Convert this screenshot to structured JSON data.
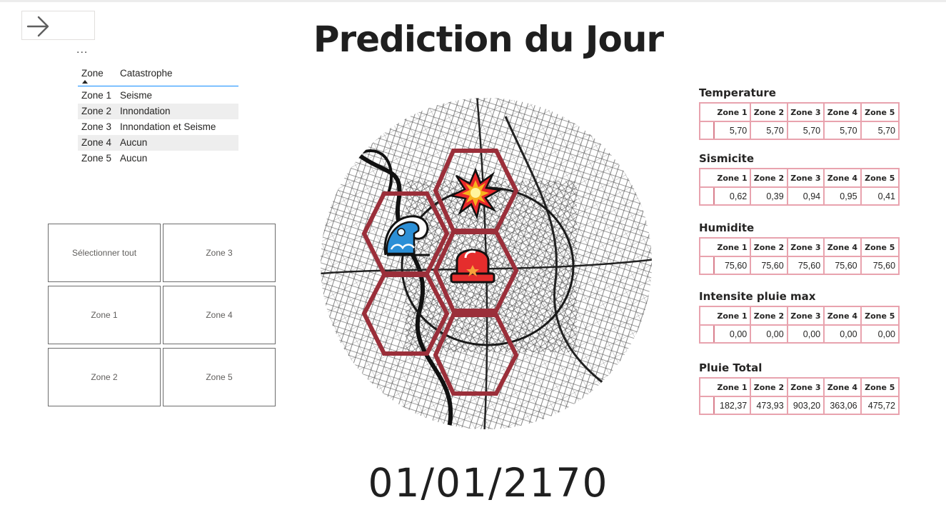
{
  "page": {
    "title": "Prediction du Jour",
    "date": "01/01/2170",
    "more_label": "..."
  },
  "zone_table": {
    "headers": {
      "zone": "Zone",
      "catastrophe": "Catastrophe"
    },
    "rows": [
      {
        "zone": "Zone 1",
        "catastrophe": "Seisme"
      },
      {
        "zone": "Zone 2",
        "catastrophe": "Innondation"
      },
      {
        "zone": "Zone 3",
        "catastrophe": "Innondation et Seisme"
      },
      {
        "zone": "Zone 4",
        "catastrophe": "Aucun"
      },
      {
        "zone": "Zone 5",
        "catastrophe": "Aucun"
      }
    ]
  },
  "slicer": {
    "select_all": "Sélectionner tout",
    "zone1": "Zone 1",
    "zone2": "Zone 2",
    "zone3": "Zone 3",
    "zone4": "Zone 4",
    "zone5": "Zone 5"
  },
  "map": {
    "hex_color": "#9b2f3a",
    "icons": [
      "explosion-icon",
      "tsunami-wave-icon",
      "siren-alarm-icon"
    ]
  },
  "metrics": {
    "zone_headers": [
      "Zone 1",
      "Zone 2",
      "Zone 3",
      "Zone 4",
      "Zone 5"
    ],
    "temperature": {
      "title": "Temperature",
      "values": [
        "5,70",
        "5,70",
        "5,70",
        "5,70",
        "5,70"
      ]
    },
    "sismicite": {
      "title": "Sismicite",
      "values": [
        "0,62",
        "0,39",
        "0,94",
        "0,95",
        "0,41"
      ]
    },
    "humidite": {
      "title": "Humidite",
      "values": [
        "75,60",
        "75,60",
        "75,60",
        "75,60",
        "75,60"
      ]
    },
    "intensite": {
      "title": "Intensite pluie max",
      "values": [
        "0,00",
        "0,00",
        "0,00",
        "0,00",
        "0,00"
      ]
    },
    "pluie_total": {
      "title": "Pluie Total",
      "values": [
        "182,37",
        "473,93",
        "903,20",
        "363,06",
        "475,72"
      ]
    }
  },
  "colors": {
    "table_border": "#e8a3ae",
    "hex_outline": "#9b2f3a",
    "accent_line": "#118dff"
  }
}
